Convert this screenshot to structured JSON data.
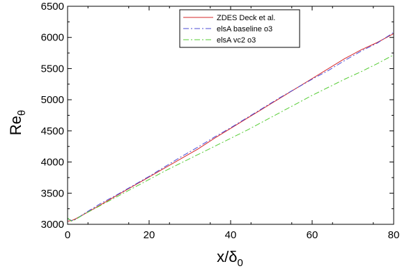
{
  "chart_data": {
    "type": "line",
    "xlabel": {
      "main": "x/",
      "symbol": "δ",
      "sub": "0"
    },
    "ylabel": {
      "main": "Re",
      "sub": "θ"
    },
    "xlim": [
      0,
      80
    ],
    "ylim": [
      3000,
      6500
    ],
    "xticks": [
      "0",
      "20",
      "40",
      "60",
      "80"
    ],
    "yticks": [
      "3000",
      "3500",
      "4000",
      "4500",
      "5000",
      "5500",
      "6000",
      "6500"
    ],
    "legend_position": "top-center",
    "grid": false,
    "series": [
      {
        "name": "ZDES Deck et al.",
        "color": "#d62728",
        "dash": "solid",
        "x": [
          0,
          1,
          2,
          4,
          8,
          12,
          16,
          20,
          24,
          28,
          32,
          36,
          40,
          44,
          48,
          52,
          56,
          60,
          64,
          68,
          72,
          76,
          80
        ],
        "y": [
          3050,
          3060,
          3090,
          3160,
          3310,
          3460,
          3610,
          3760,
          3910,
          4060,
          4210,
          4380,
          4540,
          4700,
          4860,
          5020,
          5180,
          5340,
          5500,
          5660,
          5800,
          5920,
          6060
        ]
      },
      {
        "name": "elsA baseline o3",
        "color": "#4b4bd6",
        "dash": "dashdot",
        "x": [
          0,
          1,
          2,
          4,
          8,
          12,
          16,
          20,
          24,
          28,
          32,
          36,
          40,
          44,
          48,
          52,
          56,
          60,
          64,
          68,
          72,
          76,
          80
        ],
        "y": [
          3090,
          3060,
          3080,
          3170,
          3330,
          3470,
          3620,
          3770,
          3930,
          4090,
          4240,
          4400,
          4550,
          4710,
          4870,
          5030,
          5180,
          5330,
          5470,
          5630,
          5780,
          5910,
          6080
        ]
      },
      {
        "name": "elsA vc2 o3",
        "color": "#55cc33",
        "dash": "dashdot",
        "x": [
          0,
          1,
          2,
          4,
          8,
          12,
          16,
          20,
          24,
          28,
          32,
          36,
          40,
          44,
          48,
          52,
          56,
          60,
          64,
          68,
          72,
          76,
          80
        ],
        "y": [
          3100,
          3050,
          3080,
          3160,
          3300,
          3440,
          3580,
          3720,
          3860,
          3990,
          4120,
          4250,
          4380,
          4510,
          4650,
          4790,
          4930,
          5070,
          5200,
          5330,
          5450,
          5580,
          5720
        ]
      }
    ]
  }
}
